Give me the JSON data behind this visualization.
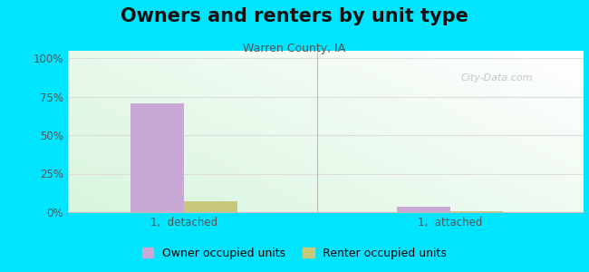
{
  "title": "Owners and renters by unit type",
  "subtitle": "Warren County, IA",
  "categories": [
    "1,  detached",
    "1,  attached"
  ],
  "owner_values": [
    70.5,
    3.8
  ],
  "renter_values": [
    7.0,
    0.8
  ],
  "owner_color": "#c9a8d4",
  "renter_color": "#c8c87a",
  "background_outer": "#00e5ff",
  "yticks": [
    0,
    25,
    50,
    75,
    100
  ],
  "ytick_labels": [
    "0%",
    "25%",
    "50%",
    "75%",
    "100%"
  ],
  "ylim": [
    0,
    105
  ],
  "bar_width": 0.32,
  "group_positions": [
    1.0,
    2.6
  ],
  "title_fontsize": 15,
  "subtitle_fontsize": 9,
  "tick_fontsize": 8.5,
  "legend_fontsize": 9
}
